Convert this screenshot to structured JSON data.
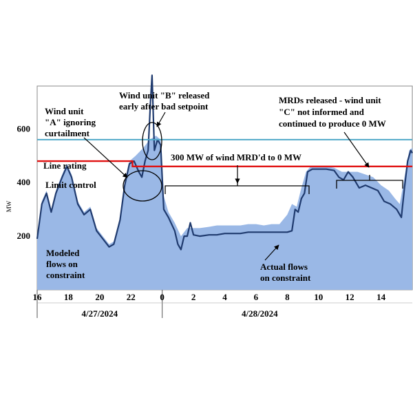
{
  "chart_data": {
    "type": "area",
    "ylabel": "MW",
    "x_unit": "hours from 4/27/2024 00:00",
    "xlim": [
      16,
      40
    ],
    "ylim": [
      0,
      760
    ],
    "y_ticks": [
      200,
      400,
      600
    ],
    "x_ticks": [
      {
        "x": 16,
        "label": "16"
      },
      {
        "x": 18,
        "label": "18"
      },
      {
        "x": 20,
        "label": "20"
      },
      {
        "x": 22,
        "label": "22"
      },
      {
        "x": 24,
        "label": "0"
      },
      {
        "x": 26,
        "label": "2"
      },
      {
        "x": 28,
        "label": "4"
      },
      {
        "x": 30,
        "label": "6"
      },
      {
        "x": 32,
        "label": "8"
      },
      {
        "x": 34,
        "label": "10"
      },
      {
        "x": 36,
        "label": "12"
      },
      {
        "x": 38,
        "label": "14"
      }
    ],
    "date_labels": [
      {
        "text": "4/27/2024",
        "x_from": 16,
        "x_to": 24
      },
      {
        "text": "4/28/2024",
        "x_from": 24,
        "x_to": 40
      }
    ],
    "series": [
      {
        "name": "Modeled flows on constraint",
        "color": "#9ab8e6",
        "points": [
          [
            16,
            200
          ],
          [
            16.3,
            330
          ],
          [
            16.6,
            370
          ],
          [
            16.9,
            300
          ],
          [
            17.2,
            370
          ],
          [
            17.6,
            430
          ],
          [
            17.9,
            470
          ],
          [
            18.2,
            430
          ],
          [
            18.6,
            330
          ],
          [
            19.0,
            290
          ],
          [
            19.4,
            310
          ],
          [
            19.8,
            230
          ],
          [
            20.2,
            200
          ],
          [
            20.6,
            170
          ],
          [
            20.9,
            180
          ],
          [
            21.3,
            270
          ],
          [
            21.6,
            400
          ],
          [
            21.9,
            480
          ],
          [
            22.3,
            500
          ],
          [
            22.8,
            530
          ],
          [
            23.2,
            560
          ],
          [
            23.6,
            575
          ],
          [
            23.9,
            560
          ],
          [
            24.1,
            350
          ],
          [
            24.4,
            290
          ],
          [
            24.8,
            250
          ],
          [
            25.2,
            200
          ],
          [
            25.6,
            230
          ],
          [
            26.0,
            230
          ],
          [
            26.4,
            230
          ],
          [
            27.0,
            235
          ],
          [
            27.5,
            240
          ],
          [
            28.0,
            240
          ],
          [
            28.5,
            240
          ],
          [
            29.0,
            240
          ],
          [
            29.5,
            245
          ],
          [
            30.0,
            245
          ],
          [
            30.5,
            240
          ],
          [
            31.0,
            245
          ],
          [
            31.5,
            245
          ],
          [
            32.0,
            280
          ],
          [
            32.3,
            320
          ],
          [
            32.6,
            310
          ],
          [
            32.9,
            380
          ],
          [
            33.2,
            440
          ],
          [
            33.5,
            460
          ],
          [
            34.0,
            460
          ],
          [
            34.5,
            460
          ],
          [
            35.0,
            455
          ],
          [
            35.5,
            440
          ],
          [
            36.0,
            440
          ],
          [
            36.5,
            440
          ],
          [
            37.0,
            430
          ],
          [
            37.5,
            420
          ],
          [
            38.0,
            390
          ],
          [
            38.5,
            370
          ],
          [
            38.9,
            340
          ],
          [
            39.2,
            320
          ],
          [
            39.5,
            420
          ],
          [
            39.8,
            520
          ],
          [
            40,
            530
          ]
        ]
      },
      {
        "name": "Actual flows on constraint",
        "color": "#1f3a6e",
        "points": [
          [
            16,
            190
          ],
          [
            16.3,
            320
          ],
          [
            16.6,
            360
          ],
          [
            16.9,
            290
          ],
          [
            17.2,
            360
          ],
          [
            17.6,
            420
          ],
          [
            17.9,
            460
          ],
          [
            18.2,
            420
          ],
          [
            18.6,
            320
          ],
          [
            19.0,
            280
          ],
          [
            19.4,
            300
          ],
          [
            19.8,
            220
          ],
          [
            20.2,
            190
          ],
          [
            20.6,
            160
          ],
          [
            20.9,
            170
          ],
          [
            21.3,
            260
          ],
          [
            21.6,
            390
          ],
          [
            21.9,
            470
          ],
          [
            22.2,
            480
          ],
          [
            22.5,
            440
          ],
          [
            22.7,
            420
          ],
          [
            22.9,
            480
          ],
          [
            23.1,
            520
          ],
          [
            23.25,
            700
          ],
          [
            23.35,
            800
          ],
          [
            23.5,
            520
          ],
          [
            23.7,
            560
          ],
          [
            23.9,
            540
          ],
          [
            24.1,
            300
          ],
          [
            24.4,
            270
          ],
          [
            24.8,
            220
          ],
          [
            25.0,
            170
          ],
          [
            25.2,
            150
          ],
          [
            25.4,
            200
          ],
          [
            25.6,
            200
          ],
          [
            25.8,
            250
          ],
          [
            26.0,
            205
          ],
          [
            26.4,
            200
          ],
          [
            27.0,
            205
          ],
          [
            27.5,
            205
          ],
          [
            28.0,
            210
          ],
          [
            28.5,
            210
          ],
          [
            29.0,
            210
          ],
          [
            29.5,
            215
          ],
          [
            30.0,
            215
          ],
          [
            30.5,
            215
          ],
          [
            31.0,
            215
          ],
          [
            31.5,
            215
          ],
          [
            32.0,
            215
          ],
          [
            32.3,
            220
          ],
          [
            32.5,
            300
          ],
          [
            32.7,
            290
          ],
          [
            32.9,
            340
          ],
          [
            33.1,
            360
          ],
          [
            33.3,
            440
          ],
          [
            33.6,
            450
          ],
          [
            34.0,
            450
          ],
          [
            34.5,
            450
          ],
          [
            35.0,
            445
          ],
          [
            35.3,
            420
          ],
          [
            35.6,
            410
          ],
          [
            35.9,
            440
          ],
          [
            36.2,
            420
          ],
          [
            36.6,
            380
          ],
          [
            37.0,
            390
          ],
          [
            37.4,
            380
          ],
          [
            37.8,
            370
          ],
          [
            38.2,
            330
          ],
          [
            38.6,
            320
          ],
          [
            39.0,
            300
          ],
          [
            39.3,
            270
          ],
          [
            39.5,
            380
          ],
          [
            39.7,
            480
          ],
          [
            39.9,
            520
          ],
          [
            40,
            510
          ]
        ]
      }
    ],
    "reference_lines": [
      {
        "name": "Line rating",
        "color": "#4fa8c8",
        "segments": [
          [
            16,
            560
          ],
          [
            40,
            560
          ]
        ]
      },
      {
        "name": "Limit control",
        "color": "#e01010",
        "segments": [
          [
            16,
            480
          ],
          [
            22.1,
            480
          ],
          [
            22.1,
            460
          ],
          [
            40,
            460
          ]
        ]
      }
    ],
    "annotations": {
      "wind_a": [
        "Wind unit",
        "\"A\" ignoring",
        "curtailment"
      ],
      "wind_b": [
        "Wind unit \"B\" released",
        "early after bad setpoint"
      ],
      "mrds": [
        "MRDs released - wind unit",
        "\"C\" not informed and",
        "continued to produce 0 MW"
      ],
      "mw300": "300 MW of wind MRD'd to 0 MW",
      "line_rating": "Line rating",
      "limit_control": "Limit control",
      "modeled": [
        "Modeled",
        "flows on",
        "constraint"
      ],
      "actual": [
        "Actual flows",
        "on constraint"
      ]
    }
  }
}
